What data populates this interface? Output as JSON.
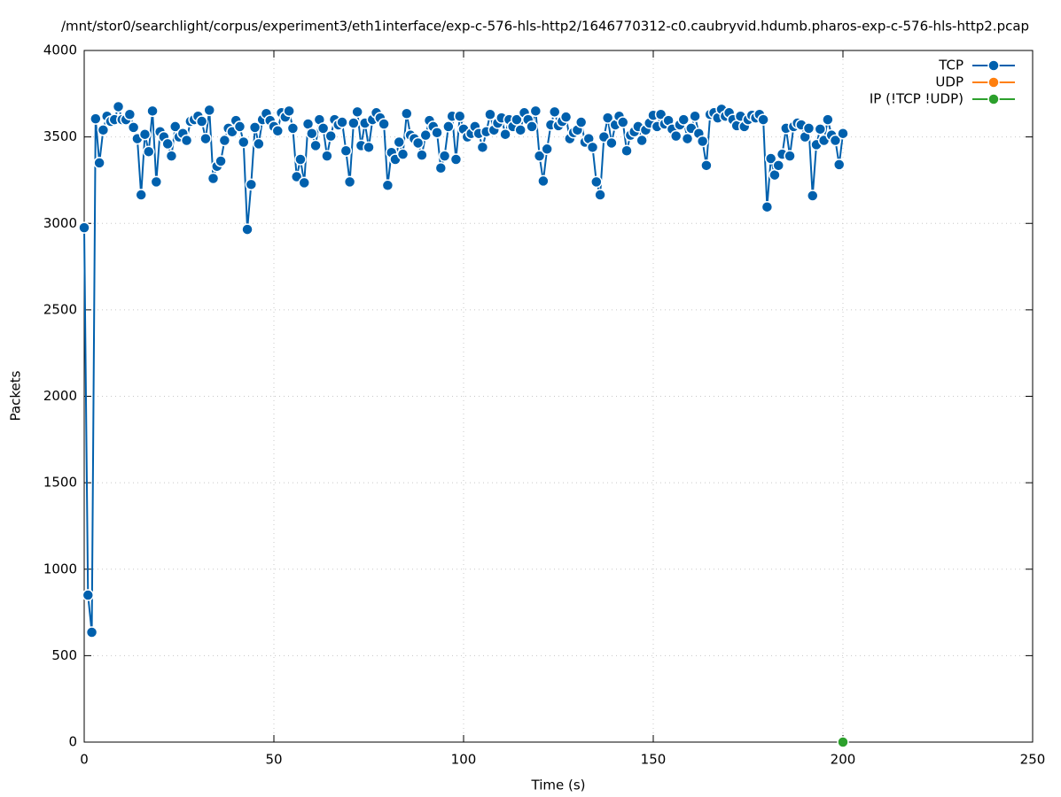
{
  "chart_data": {
    "type": "line",
    "title": "/mnt/stor0/searchlight/corpus/experiment3/eth1interface/exp-c-576-hls-http2/1646770312-c0.caubryvid.hdumb.pharos-exp-c-576-hls-http2.pcap",
    "x_label": "Time (s)",
    "y_label": "Packets",
    "xlim": [
      0,
      250
    ],
    "xticks": [
      0,
      50,
      100,
      150,
      200,
      250
    ],
    "ylim": [
      0,
      4000
    ],
    "yticks": [
      0,
      500,
      1000,
      1500,
      2000,
      2500,
      3000,
      3500,
      4000
    ],
    "grid": true,
    "legend": "top-right",
    "series": [
      {
        "name": "TCP",
        "color": "#0060ad",
        "x": [
          0,
          1,
          2,
          3,
          4,
          5,
          6,
          7,
          8,
          9,
          10,
          11,
          12,
          13,
          14,
          15,
          16,
          17,
          18,
          19,
          20,
          21,
          22,
          23,
          24,
          25,
          26,
          27,
          28,
          29,
          30,
          31,
          32,
          33,
          34,
          35,
          36,
          37,
          38,
          39,
          40,
          41,
          42,
          43,
          44,
          45,
          46,
          47,
          48,
          49,
          50,
          51,
          52,
          53,
          54,
          55,
          56,
          57,
          58,
          59,
          60,
          61,
          62,
          63,
          64,
          65,
          66,
          67,
          68,
          69,
          70,
          71,
          72,
          73,
          74,
          75,
          76,
          77,
          78,
          79,
          80,
          81,
          82,
          83,
          84,
          85,
          86,
          87,
          88,
          89,
          90,
          91,
          92,
          93,
          94,
          95,
          96,
          97,
          98,
          99,
          100,
          101,
          102,
          103,
          104,
          105,
          106,
          107,
          108,
          109,
          110,
          111,
          112,
          113,
          114,
          115,
          116,
          117,
          118,
          119,
          120,
          121,
          122,
          123,
          124,
          125,
          126,
          127,
          128,
          129,
          130,
          131,
          132,
          133,
          134,
          135,
          136,
          137,
          138,
          139,
          140,
          141,
          142,
          143,
          144,
          145,
          146,
          147,
          148,
          149,
          150,
          151,
          152,
          153,
          154,
          155,
          156,
          157,
          158,
          159,
          160,
          161,
          162,
          163,
          164,
          165,
          166,
          167,
          168,
          169,
          170,
          171,
          172,
          173,
          174,
          175,
          176,
          177,
          178,
          179,
          180,
          181,
          182,
          183,
          184,
          185,
          186,
          187,
          188,
          189,
          190,
          191,
          192,
          193,
          194,
          195,
          196,
          197,
          198,
          199,
          200
        ],
        "values": [
          2975,
          850,
          635,
          3605,
          3350,
          3540,
          3620,
          3590,
          3600,
          3675,
          3600,
          3600,
          3630,
          3555,
          3490,
          3165,
          3515,
          3415,
          3650,
          3240,
          3530,
          3500,
          3460,
          3390,
          3560,
          3500,
          3520,
          3480,
          3590,
          3600,
          3620,
          3590,
          3490,
          3655,
          3260,
          3330,
          3360,
          3480,
          3550,
          3530,
          3595,
          3560,
          3470,
          2965,
          3225,
          3555,
          3460,
          3600,
          3635,
          3595,
          3560,
          3535,
          3640,
          3615,
          3650,
          3550,
          3270,
          3370,
          3235,
          3575,
          3520,
          3450,
          3600,
          3550,
          3390,
          3505,
          3600,
          3570,
          3585,
          3420,
          3240,
          3580,
          3645,
          3450,
          3580,
          3440,
          3600,
          3640,
          3610,
          3575,
          3220,
          3410,
          3370,
          3470,
          3400,
          3635,
          3510,
          3490,
          3465,
          3395,
          3510,
          3595,
          3560,
          3525,
          3320,
          3390,
          3560,
          3620,
          3370,
          3620,
          3545,
          3500,
          3520,
          3560,
          3520,
          3440,
          3530,
          3630,
          3540,
          3580,
          3610,
          3515,
          3600,
          3560,
          3600,
          3540,
          3640,
          3600,
          3560,
          3650,
          3390,
          3245,
          3430,
          3570,
          3645,
          3565,
          3590,
          3615,
          3490,
          3525,
          3540,
          3585,
          3470,
          3490,
          3440,
          3240,
          3165,
          3500,
          3610,
          3465,
          3570,
          3620,
          3585,
          3420,
          3510,
          3530,
          3560,
          3480,
          3540,
          3580,
          3625,
          3560,
          3630,
          3575,
          3595,
          3545,
          3505,
          3570,
          3600,
          3490,
          3550,
          3620,
          3520,
          3475,
          3335,
          3630,
          3640,
          3610,
          3660,
          3620,
          3640,
          3600,
          3565,
          3620,
          3560,
          3600,
          3625,
          3610,
          3630,
          3600,
          3095,
          3375,
          3280,
          3335,
          3400,
          3550,
          3390,
          3560,
          3580,
          3570,
          3500,
          3550,
          3160,
          3455,
          3545,
          3480,
          3600,
          3510,
          3480,
          3340,
          3520
        ]
      },
      {
        "name": "UDP",
        "color": "#ff7f0e",
        "x": [],
        "values": []
      },
      {
        "name": "IP (!TCP  !UDP)",
        "color": "#2ca02c",
        "x": [
          200
        ],
        "values": [
          0
        ]
      }
    ]
  }
}
